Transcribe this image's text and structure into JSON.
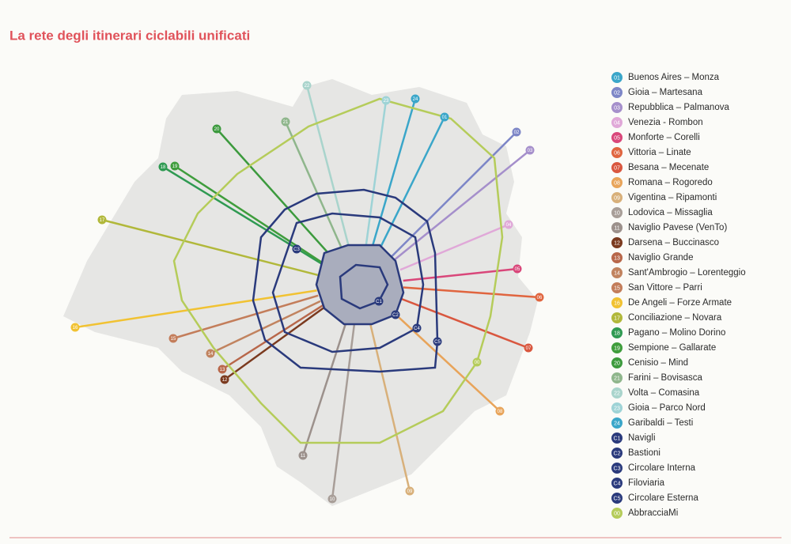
{
  "title": "La rete degli itinerari ciclabili unificati",
  "legend": [
    {
      "code": "01",
      "name": "Buenos Aires – Monza",
      "color": "#3aa6c9"
    },
    {
      "code": "02",
      "name": "Gioia – Martesana",
      "color": "#7d86c7"
    },
    {
      "code": "03",
      "name": "Repubblica – Palmanova",
      "color": "#a58fcb"
    },
    {
      "code": "04",
      "name": "Venezia - Rombon",
      "color": "#e0a8d8"
    },
    {
      "code": "05",
      "name": "Monforte – Corelli",
      "color": "#d9477a"
    },
    {
      "code": "06",
      "name": "Vittoria – Linate",
      "color": "#e0653f"
    },
    {
      "code": "07",
      "name": "Besana – Mecenate",
      "color": "#d9573f"
    },
    {
      "code": "08",
      "name": "Romana – Rogoredo",
      "color": "#e8a45a"
    },
    {
      "code": "09",
      "name": "Vigentina – Ripamonti",
      "color": "#d8b07a"
    },
    {
      "code": "10",
      "name": "Lodovica – Missaglia",
      "color": "#a89e98"
    },
    {
      "code": "11",
      "name": "Naviglio Pavese (VenTo)",
      "color": "#9c918c"
    },
    {
      "code": "12",
      "name": "Darsena – Buccinasco",
      "color": "#7b3a1f"
    },
    {
      "code": "13",
      "name": "Naviglio Grande",
      "color": "#b8674a"
    },
    {
      "code": "14",
      "name": "Sant'Ambrogio – Lorenteggio",
      "color": "#c1835f"
    },
    {
      "code": "15",
      "name": "San Vittore – Parri",
      "color": "#c37d5a"
    },
    {
      "code": "16",
      "name": "De Angeli – Forze Armate",
      "color": "#f1c232"
    },
    {
      "code": "17",
      "name": "Conciliazione – Novara",
      "color": "#b1b83a"
    },
    {
      "code": "18",
      "name": "Pagano – Molino Dorino",
      "color": "#2f9a52"
    },
    {
      "code": "19",
      "name": "Sempione – Gallarate",
      "color": "#3f9d3c"
    },
    {
      "code": "20",
      "name": "Cenisio – Mind",
      "color": "#3c9a3d"
    },
    {
      "code": "21",
      "name": "Farini – Bovisasca",
      "color": "#8fb68c"
    },
    {
      "code": "22",
      "name": "Volta – Comasina",
      "color": "#a9d4cc"
    },
    {
      "code": "23",
      "name": "Gioia – Parco Nord",
      "color": "#9ed3d6"
    },
    {
      "code": "24",
      "name": "Garibaldi – Testi",
      "color": "#3aa6c9"
    },
    {
      "code": "C1",
      "name": "Navigli",
      "color": "#2a3a7c"
    },
    {
      "code": "C2",
      "name": "Bastioni",
      "color": "#2a3a7c"
    },
    {
      "code": "C3",
      "name": "Circolare Interna",
      "color": "#2a3a7c"
    },
    {
      "code": "C4",
      "name": "Filoviaria",
      "color": "#2a3a7c"
    },
    {
      "code": "C5",
      "name": "Circolare Esterna",
      "color": "#2a3a7c"
    },
    {
      "code": "00",
      "name": "AbbracciaMi",
      "color": "#b5cc5a"
    }
  ]
}
